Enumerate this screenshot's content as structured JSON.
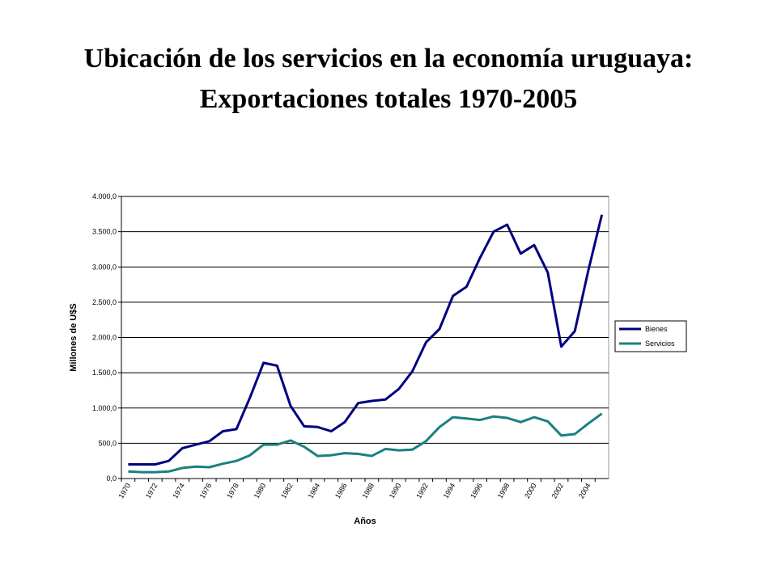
{
  "chart_data": {
    "type": "line",
    "title_lines": [
      "Ubicación de los servicios en la economía uruguaya:",
      "Exportaciones totales 1970-2005"
    ],
    "x_label": "Años",
    "y_label": "Millones de U$S",
    "categories": [
      "1970",
      null,
      "1972",
      null,
      "1974",
      null,
      "1976",
      null,
      "1978",
      null,
      "1980",
      null,
      "1982",
      null,
      "1984",
      null,
      "1986",
      null,
      "1988",
      null,
      "1990",
      null,
      "1992",
      null,
      "1994",
      null,
      "1996",
      null,
      "1998",
      null,
      "2000",
      null,
      "2002",
      null,
      "2004",
      null
    ],
    "series": [
      {
        "name": "Bienes",
        "color": "#000080",
        "values": [
          200,
          200,
          200,
          250,
          430,
          480,
          530,
          670,
          700,
          1150,
          1640,
          1600,
          1030,
          740,
          730,
          670,
          800,
          1070,
          1100,
          1120,
          1270,
          1520,
          1930,
          2120,
          2590,
          2720,
          3130,
          3500,
          3600,
          3190,
          3310,
          2920,
          1870,
          2090,
          2950,
          3740
        ]
      },
      {
        "name": "Servicios",
        "color": "#1a8080",
        "values": [
          100,
          90,
          90,
          100,
          150,
          170,
          160,
          210,
          250,
          330,
          480,
          480,
          540,
          450,
          320,
          330,
          360,
          350,
          320,
          420,
          400,
          410,
          530,
          730,
          870,
          850,
          830,
          880,
          860,
          800,
          870,
          810,
          610,
          630,
          780,
          920
        ]
      }
    ],
    "ylim": [
      0,
      4000
    ],
    "yticks": [
      {
        "value": 0,
        "label": "0,0"
      },
      {
        "value": 500,
        "label": "500,0"
      },
      {
        "value": 1000,
        "label": "1.000,0"
      },
      {
        "value": 1500,
        "label": "1.500,0"
      },
      {
        "value": 2000,
        "label": "2.000,0"
      },
      {
        "value": 2500,
        "label": "2.500,0"
      },
      {
        "value": 3000,
        "label": "3.000,0"
      },
      {
        "value": 3500,
        "label": "3.500,0"
      },
      {
        "value": 4000,
        "label": "4.000,0"
      }
    ],
    "grid": true,
    "legend": "right"
  }
}
